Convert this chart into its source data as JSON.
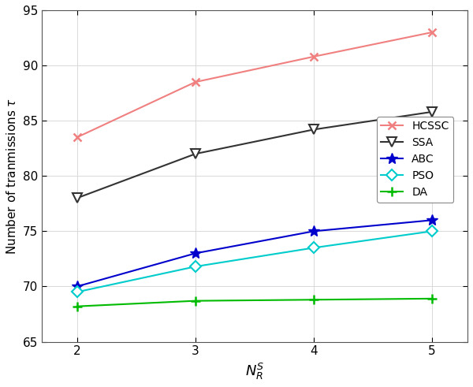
{
  "x": [
    2,
    3,
    4,
    5
  ],
  "HCSSC": [
    83.5,
    88.5,
    90.8,
    93.0
  ],
  "SSA": [
    78.0,
    82.0,
    84.2,
    85.8
  ],
  "ABC": [
    70.0,
    73.0,
    75.0,
    76.0
  ],
  "PSO": [
    69.5,
    71.8,
    73.5,
    75.0
  ],
  "DA": [
    68.2,
    68.7,
    68.8,
    68.9
  ],
  "HCSSC_color": "#f08080",
  "SSA_color": "#333333",
  "ABC_color": "#0000cd",
  "PSO_color": "#00cccc",
  "DA_color": "#00bb00",
  "xlabel": "$N_{R}^{S}$",
  "ylabel": "Number of tranmissions $\\tau$",
  "xlim": [
    1.7,
    5.3
  ],
  "ylim": [
    65,
    95
  ],
  "yticks": [
    65,
    70,
    75,
    80,
    85,
    90,
    95
  ],
  "xticks": [
    2,
    3,
    4,
    5
  ],
  "legend_order": [
    "HCSSC",
    "SSA",
    "ABC",
    "PSO",
    "DA"
  ],
  "bg_color": "#ffffff",
  "grid_color": "#d3d3d3"
}
